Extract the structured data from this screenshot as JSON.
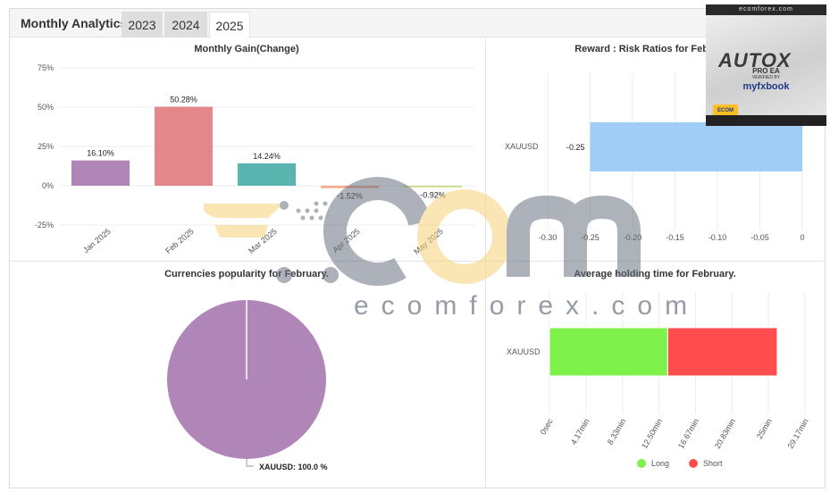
{
  "header": {
    "title": "Monthly Analytics",
    "tabs": [
      {
        "label": "2023",
        "active": false
      },
      {
        "label": "2024",
        "active": false
      },
      {
        "label": "2025",
        "active": true
      }
    ]
  },
  "watermark": {
    "site": "ecomforex.com",
    "product": "AUTOX",
    "edition": "PRO EA",
    "verified": "VERIFIED BY",
    "verifier": "myfxbook",
    "badge": "ECOM",
    "overlay_text": "ecomforex.com"
  },
  "chart_data": [
    {
      "id": "monthly-gain",
      "type": "bar",
      "title": "Monthly Gain(Change)",
      "categories": [
        "Jan 2025",
        "Feb 2025",
        "Mar 2025",
        "Apr 2025",
        "May 2025"
      ],
      "values": [
        16.1,
        50.28,
        14.24,
        -1.52,
        -0.92
      ],
      "value_labels": [
        "16.10%",
        "50.28%",
        "14.24%",
        "-1.52%",
        "-0.92%"
      ],
      "colors": [
        "#b085b8",
        "#e4878a",
        "#5ab5b0",
        "#f4ab8a",
        "#c5d67a"
      ],
      "ylim": [
        -25,
        75
      ],
      "yticks": [
        "75%",
        "50%",
        "25%",
        "0%",
        "-25%"
      ],
      "grid": true
    },
    {
      "id": "reward-risk",
      "type": "bar",
      "orientation": "horizontal",
      "title": "Reward : Risk Ratios for February.",
      "categories": [
        "XAUUSD"
      ],
      "values": [
        -0.25
      ],
      "value_labels": [
        "-0.25"
      ],
      "color": "#9fcdf5",
      "xlim": [
        -0.3,
        0
      ],
      "xticks": [
        "-0.30",
        "-0.25",
        "-0.20",
        "-0.15",
        "-0.10",
        "-0.05",
        "0"
      ],
      "grid": true
    },
    {
      "id": "currencies-popularity",
      "type": "pie",
      "title": "Currencies popularity for February.",
      "labels": [
        "XAUUSD"
      ],
      "values": [
        100.0
      ],
      "slice_labels": [
        "XAUUSD: 100.0 %"
      ],
      "colors": [
        "#b085b8"
      ]
    },
    {
      "id": "holding-time",
      "type": "bar",
      "orientation": "horizontal",
      "stacked": true,
      "title": "Average holding time for February.",
      "categories": [
        "XAUUSD"
      ],
      "series": [
        {
          "name": "Long",
          "values": [
            13.5
          ],
          "color": "#7ef24a"
        },
        {
          "name": "Short",
          "values": [
            12.5
          ],
          "color": "#ff4d4d"
        }
      ],
      "xlim": [
        0,
        29.17
      ],
      "xticks": [
        "0sec",
        "4.17min",
        "8.33min",
        "12.50min",
        "16.67min",
        "20.83min",
        "25min",
        "29.17min"
      ],
      "legend": "bottom",
      "grid": true
    }
  ]
}
